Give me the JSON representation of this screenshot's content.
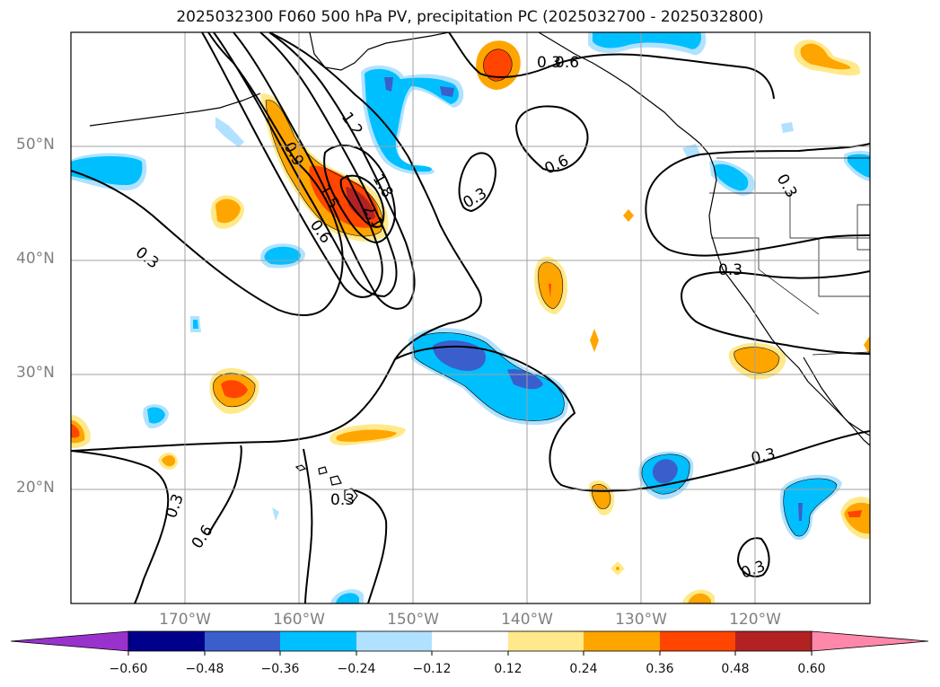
{
  "title": "2025032300 F060 500 hPa PV, precipitation PC (2025032700 - 2025032800)",
  "lat_labels": [
    "50°N",
    "40°N",
    "30°N",
    "20°N"
  ],
  "lon_labels": [
    "170°W",
    "160°W",
    "150°W",
    "140°W",
    "130°W",
    "120°W"
  ],
  "contour_labels": [
    "0.3",
    "0.3",
    "0.6",
    "0.3",
    "0.3",
    "1.2",
    "0.9",
    "1.5",
    "1.8",
    "2.1",
    "0.6",
    "0.3",
    "0.3",
    "0.3",
    "0.3",
    "0.6",
    "0.6",
    "0.3"
  ],
  "colorbar": {
    "ticks": [
      "−0.60",
      "−0.48",
      "−0.36",
      "−0.24",
      "−0.12",
      "0.12",
      "0.24",
      "0.36",
      "0.48",
      "0.60"
    ],
    "colors": [
      "#9932cc",
      "#00008b",
      "#3a5fcd",
      "#00bfff",
      "#b0e2ff",
      "#ffffff",
      "#ffe98a",
      "#ffa500",
      "#ff4500",
      "#b22222",
      "#ff88aa"
    ]
  },
  "fill_colors": {
    "light_yellow": "#ffe98a",
    "orange": "#ffa500",
    "red_orange": "#ff4500",
    "dark_red": "#b22222",
    "light_blue": "#b0e2ff",
    "blue": "#00bfff",
    "royal_blue": "#3a5fcd"
  }
}
